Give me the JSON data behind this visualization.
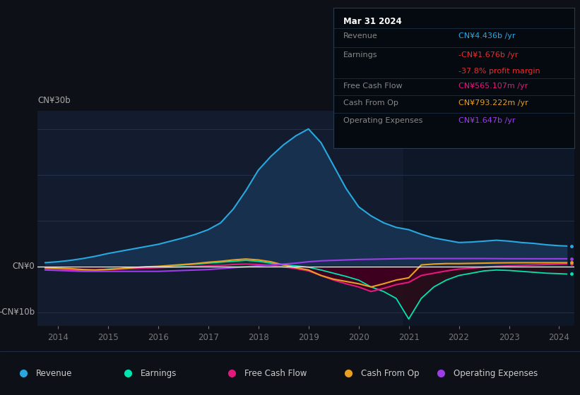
{
  "bg_color": "#0d1117",
  "plot_bg_color": "#131c2e",
  "grid_color": "#2a3a5a",
  "zero_line_color": "#ffffff",
  "ylabel_30b": "CN¥30b",
  "ylabel_0": "CN¥0",
  "ylabel_neg10b": "-CN¥10b",
  "ylim": [
    -13000000000,
    34000000000
  ],
  "years": [
    2013.75,
    2014.0,
    2014.25,
    2014.5,
    2014.75,
    2015.0,
    2015.25,
    2015.5,
    2015.75,
    2016.0,
    2016.25,
    2016.5,
    2016.75,
    2017.0,
    2017.25,
    2017.5,
    2017.75,
    2018.0,
    2018.25,
    2018.5,
    2018.75,
    2019.0,
    2019.25,
    2019.5,
    2019.75,
    2020.0,
    2020.25,
    2020.5,
    2020.75,
    2021.0,
    2021.25,
    2021.5,
    2021.75,
    2022.0,
    2022.25,
    2022.5,
    2022.75,
    2023.0,
    2023.25,
    2023.5,
    2023.75,
    2024.0,
    2024.15
  ],
  "revenue": [
    800000000.0,
    1000000000.0,
    1300000000.0,
    1700000000.0,
    2200000000.0,
    2800000000.0,
    3300000000.0,
    3800000000.0,
    4300000000.0,
    4800000000.0,
    5500000000.0,
    6200000000.0,
    7000000000.0,
    8000000000.0,
    9500000000.0,
    12500000000.0,
    16500000000.0,
    21000000000.0,
    24000000000.0,
    26500000000.0,
    28500000000.0,
    30000000000.0,
    27000000000.0,
    22000000000.0,
    17000000000.0,
    13000000000.0,
    11000000000.0,
    9500000000.0,
    8500000000.0,
    8000000000.0,
    7000000000.0,
    6200000000.0,
    5700000000.0,
    5200000000.0,
    5300000000.0,
    5500000000.0,
    5700000000.0,
    5500000000.0,
    5200000000.0,
    5000000000.0,
    4700000000.0,
    4500000000.0,
    4436000000.0
  ],
  "earnings": [
    -300000000.0,
    -500000000.0,
    -800000000.0,
    -900000000.0,
    -800000000.0,
    -600000000.0,
    -500000000.0,
    -300000000.0,
    -200000000.0,
    -100000000.0,
    100000000.0,
    300000000.0,
    500000000.0,
    700000000.0,
    900000000.0,
    1100000000.0,
    1300000000.0,
    1100000000.0,
    700000000.0,
    300000000.0,
    100000000.0,
    -200000000.0,
    -800000000.0,
    -1500000000.0,
    -2200000000.0,
    -3000000000.0,
    -4500000000.0,
    -5500000000.0,
    -7000000000.0,
    -11500000000.0,
    -7000000000.0,
    -4500000000.0,
    -3000000000.0,
    -2000000000.0,
    -1500000000.0,
    -1000000000.0,
    -800000000.0,
    -900000000.0,
    -1100000000.0,
    -1300000000.0,
    -1500000000.0,
    -1600000000.0,
    -1676000000.0
  ],
  "free_cash_flow": [
    -500000000.0,
    -600000000.0,
    -700000000.0,
    -800000000.0,
    -800000000.0,
    -700000000.0,
    -600000000.0,
    -500000000.0,
    -400000000.0,
    -300000000.0,
    -200000000.0,
    -100000000.0,
    0.0,
    100000000.0,
    200000000.0,
    400000000.0,
    500000000.0,
    400000000.0,
    200000000.0,
    -100000000.0,
    -500000000.0,
    -1000000000.0,
    -2000000000.0,
    -3000000000.0,
    -3800000000.0,
    -4500000000.0,
    -5500000000.0,
    -4800000000.0,
    -4000000000.0,
    -3500000000.0,
    -2000000000.0,
    -1500000000.0,
    -1000000000.0,
    -600000000.0,
    -400000000.0,
    -200000000.0,
    0.0,
    100000000.0,
    200000000.0,
    300000000.0,
    400000000.0,
    500000000.0,
    565000000.0
  ],
  "cash_from_op": [
    -300000000.0,
    -400000000.0,
    -500000000.0,
    -700000000.0,
    -800000000.0,
    -700000000.0,
    -500000000.0,
    -300000000.0,
    -100000000.0,
    0.0,
    200000000.0,
    400000000.0,
    600000000.0,
    900000000.0,
    1100000000.0,
    1400000000.0,
    1600000000.0,
    1400000000.0,
    1000000000.0,
    300000000.0,
    -300000000.0,
    -800000000.0,
    -2000000000.0,
    -2800000000.0,
    -3300000000.0,
    -3800000000.0,
    -4500000000.0,
    -3800000000.0,
    -3000000000.0,
    -2500000000.0,
    300000000.0,
    500000000.0,
    600000000.0,
    600000000.0,
    650000000.0,
    700000000.0,
    750000000.0,
    780000000.0,
    790000000.0,
    790000000.0,
    790000000.0,
    790000000.0,
    793000000.0
  ],
  "op_expenses": [
    -800000000.0,
    -900000000.0,
    -1000000000.0,
    -1100000000.0,
    -1100000000.0,
    -1100000000.0,
    -1100000000.0,
    -1100000000.0,
    -1100000000.0,
    -1100000000.0,
    -1000000000.0,
    -900000000.0,
    -800000000.0,
    -700000000.0,
    -500000000.0,
    -300000000.0,
    -100000000.0,
    100000000.0,
    300000000.0,
    500000000.0,
    700000000.0,
    1000000000.0,
    1200000000.0,
    1300000000.0,
    1400000000.0,
    1500000000.0,
    1550000000.0,
    1600000000.0,
    1650000000.0,
    1700000000.0,
    1700000000.0,
    1700000000.0,
    1700000000.0,
    1700000000.0,
    1700000000.0,
    1700000000.0,
    1680000000.0,
    1660000000.0,
    1660000000.0,
    1655000000.0,
    1650000000.0,
    1648000000.0,
    1647000000.0
  ],
  "revenue_color": "#29a8e0",
  "revenue_fill": "#17304d",
  "earnings_color": "#00e5b0",
  "free_cash_flow_color": "#e0197d",
  "cash_from_op_color": "#e8a020",
  "op_expenses_color": "#9b3de8",
  "tooltip_bg": "#050a10",
  "tooltip_border": "#2a3a50",
  "tooltip_title": "Mar 31 2024",
  "tooltip_revenue_label": "Revenue",
  "tooltip_revenue_value": "CN¥4.436b /yr",
  "tooltip_earnings_label": "Earnings",
  "tooltip_earnings_value": "-CN¥1.676b /yr",
  "tooltip_margin_value": "-37.8% profit margin",
  "tooltip_fcf_label": "Free Cash Flow",
  "tooltip_fcf_value": "CN¥565.107m /yr",
  "tooltip_cashop_label": "Cash From Op",
  "tooltip_cashop_value": "CN¥793.222m /yr",
  "tooltip_opex_label": "Operating Expenses",
  "tooltip_opex_value": "CN¥1.647b /yr",
  "legend_items": [
    "Revenue",
    "Earnings",
    "Free Cash Flow",
    "Cash From Op",
    "Operating Expenses"
  ],
  "legend_colors": [
    "#29a8e0",
    "#00e5b0",
    "#e0197d",
    "#e8a020",
    "#9b3de8"
  ],
  "xticks": [
    2014,
    2015,
    2016,
    2017,
    2018,
    2019,
    2020,
    2021,
    2022,
    2023,
    2024
  ],
  "xlim_left": 2013.6,
  "xlim_right": 2024.3,
  "shaded_right_start": 2020.9
}
